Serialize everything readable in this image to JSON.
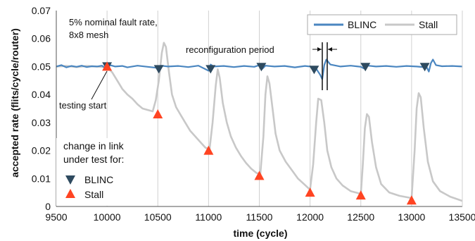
{
  "colors": {
    "blinc": "#4a86c0",
    "stall": "#c8c8c8",
    "marker_blinc": "#2e4a5f",
    "marker_stall": "#ff4422",
    "grid": "#d0d0d0",
    "axis": "#555555"
  },
  "chart_data": {
    "type": "line",
    "xlabel": "time (cycle)",
    "ylabel": "accepted rate (flits/cycle/router)",
    "xlim": [
      9500,
      13500
    ],
    "ylim": [
      0,
      0.07
    ],
    "x_ticks": [
      "9500",
      "10000",
      "10500",
      "11000",
      "11500",
      "12000",
      "12500",
      "13000",
      "13500"
    ],
    "y_ticks": [
      "0",
      "0.01",
      "0.02",
      "0.03",
      "0.04",
      "0.05",
      "0.06",
      "0.07"
    ],
    "grid": "vertical",
    "legend_position": "top-right",
    "series": [
      {
        "name": "BLINC",
        "points": [
          [
            9500,
            0.05
          ],
          [
            9550,
            0.0505
          ],
          [
            9600,
            0.0497
          ],
          [
            9650,
            0.0502
          ],
          [
            9700,
            0.0499
          ],
          [
            9750,
            0.0503
          ],
          [
            9800,
            0.0498
          ],
          [
            9850,
            0.0501
          ],
          [
            9900,
            0.05
          ],
          [
            9950,
            0.0503
          ],
          [
            10000,
            0.049
          ],
          [
            10030,
            0.0505
          ],
          [
            10080,
            0.05
          ],
          [
            10150,
            0.0502
          ],
          [
            10200,
            0.0497
          ],
          [
            10300,
            0.0503
          ],
          [
            10400,
            0.0499
          ],
          [
            10500,
            0.0495
          ],
          [
            10530,
            0.0503
          ],
          [
            10600,
            0.05
          ],
          [
            10700,
            0.0502
          ],
          [
            10800,
            0.0498
          ],
          [
            10900,
            0.0503
          ],
          [
            11000,
            0.0485
          ],
          [
            11020,
            0.0507
          ],
          [
            11050,
            0.05
          ],
          [
            11150,
            0.0502
          ],
          [
            11250,
            0.0498
          ],
          [
            11350,
            0.0502
          ],
          [
            11450,
            0.0499
          ],
          [
            11500,
            0.0505
          ],
          [
            11530,
            0.0492
          ],
          [
            11560,
            0.0503
          ],
          [
            11650,
            0.05
          ],
          [
            11750,
            0.0502
          ],
          [
            11850,
            0.0497
          ],
          [
            11950,
            0.0502
          ],
          [
            12050,
            0.0498
          ],
          [
            12100,
            0.047
          ],
          [
            12120,
            0.0455
          ],
          [
            12140,
            0.0505
          ],
          [
            12160,
            0.0525
          ],
          [
            12200,
            0.0507
          ],
          [
            12300,
            0.05
          ],
          [
            12400,
            0.0503
          ],
          [
            12500,
            0.0499
          ],
          [
            12530,
            0.0493
          ],
          [
            12570,
            0.0503
          ],
          [
            12650,
            0.05
          ],
          [
            12750,
            0.0502
          ],
          [
            12850,
            0.0499
          ],
          [
            12950,
            0.0502
          ],
          [
            13050,
            0.05
          ],
          [
            13150,
            0.0497
          ],
          [
            13170,
            0.0482
          ],
          [
            13190,
            0.0512
          ],
          [
            13210,
            0.0525
          ],
          [
            13240,
            0.0505
          ],
          [
            13300,
            0.0501
          ],
          [
            13400,
            0.0502
          ],
          [
            13500,
            0.05
          ]
        ]
      },
      {
        "name": "Stall",
        "points": [
          [
            9500,
            0.05
          ],
          [
            9600,
            0.0502
          ],
          [
            9700,
            0.0498
          ],
          [
            9800,
            0.0502
          ],
          [
            9900,
            0.05
          ],
          [
            10000,
            0.0497
          ],
          [
            10050,
            0.048
          ],
          [
            10100,
            0.045
          ],
          [
            10150,
            0.042
          ],
          [
            10200,
            0.04
          ],
          [
            10250,
            0.0385
          ],
          [
            10300,
            0.0365
          ],
          [
            10350,
            0.035
          ],
          [
            10400,
            0.0345
          ],
          [
            10450,
            0.034
          ],
          [
            10480,
            0.038
          ],
          [
            10510,
            0.045
          ],
          [
            10540,
            0.055
          ],
          [
            10560,
            0.0585
          ],
          [
            10580,
            0.057
          ],
          [
            10610,
            0.048
          ],
          [
            10640,
            0.04
          ],
          [
            10680,
            0.0355
          ],
          [
            10720,
            0.033
          ],
          [
            10770,
            0.03
          ],
          [
            10820,
            0.027
          ],
          [
            10870,
            0.025
          ],
          [
            10920,
            0.023
          ],
          [
            10970,
            0.021
          ],
          [
            11010,
            0.0205
          ],
          [
            11040,
            0.03
          ],
          [
            11070,
            0.043
          ],
          [
            11090,
            0.049
          ],
          [
            11110,
            0.046
          ],
          [
            11140,
            0.037
          ],
          [
            11180,
            0.03
          ],
          [
            11220,
            0.025
          ],
          [
            11270,
            0.021
          ],
          [
            11320,
            0.018
          ],
          [
            11370,
            0.0155
          ],
          [
            11420,
            0.0135
          ],
          [
            11470,
            0.012
          ],
          [
            11510,
            0.0115
          ],
          [
            11540,
            0.025
          ],
          [
            11560,
            0.04
          ],
          [
            11580,
            0.0465
          ],
          [
            11600,
            0.044
          ],
          [
            11630,
            0.035
          ],
          [
            11660,
            0.026
          ],
          [
            11700,
            0.02
          ],
          [
            11760,
            0.016
          ],
          [
            11820,
            0.013
          ],
          [
            11880,
            0.01
          ],
          [
            11940,
            0.008
          ],
          [
            12000,
            0.006
          ],
          [
            12030,
            0.015
          ],
          [
            12060,
            0.03
          ],
          [
            12080,
            0.0385
          ],
          [
            12110,
            0.038
          ],
          [
            12140,
            0.03
          ],
          [
            12170,
            0.02
          ],
          [
            12210,
            0.014
          ],
          [
            12260,
            0.01
          ],
          [
            12320,
            0.0075
          ],
          [
            12400,
            0.0055
          ],
          [
            12500,
            0.0045
          ],
          [
            12520,
            0.015
          ],
          [
            12540,
            0.028
          ],
          [
            12560,
            0.033
          ],
          [
            12580,
            0.032
          ],
          [
            12610,
            0.023
          ],
          [
            12650,
            0.014
          ],
          [
            12700,
            0.008
          ],
          [
            12780,
            0.005
          ],
          [
            12880,
            0.0038
          ],
          [
            13000,
            0.003
          ],
          [
            13030,
            0.02
          ],
          [
            13050,
            0.035
          ],
          [
            13070,
            0.0405
          ],
          [
            13090,
            0.039
          ],
          [
            13120,
            0.028
          ],
          [
            13160,
            0.016
          ],
          [
            13210,
            0.009
          ],
          [
            13280,
            0.0055
          ],
          [
            13380,
            0.0035
          ],
          [
            13500,
            0.002
          ]
        ]
      }
    ],
    "markers": [
      {
        "series": "BLINC",
        "points": [
          [
            10000,
            0.05
          ],
          [
            10510,
            0.049
          ],
          [
            11020,
            0.049
          ],
          [
            11520,
            0.0498
          ],
          [
            12040,
            0.0488
          ],
          [
            12545,
            0.0498
          ],
          [
            13130,
            0.0498
          ]
        ]
      },
      {
        "series": "Stall",
        "points": [
          [
            10000,
            0.05
          ],
          [
            10500,
            0.033
          ],
          [
            11000,
            0.02
          ],
          [
            11500,
            0.011
          ],
          [
            12000,
            0.005
          ],
          [
            12500,
            0.004
          ],
          [
            13000,
            0.0022
          ]
        ]
      }
    ],
    "annotations": {
      "fault_line1": "5% nominal fault rate,",
      "fault_line2": "8x8 mesh",
      "testing_start": "testing start",
      "reconfig": "reconfiguration period",
      "change_line1": "change in link",
      "change_line2": "under test for:"
    },
    "legend": [
      "BLINC",
      "Stall"
    ],
    "marker_legend": [
      "BLINC",
      "Stall"
    ]
  }
}
